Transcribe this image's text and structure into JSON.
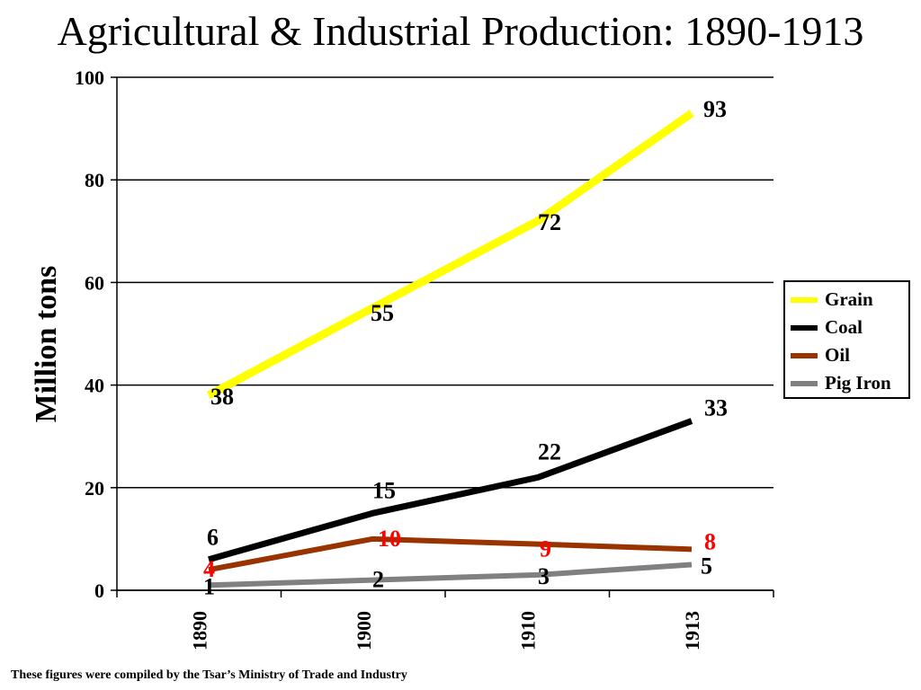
{
  "page": {
    "title": "Agricultural & Industrial Production: 1890-1913",
    "footnote": "These figures were compiled by the Tsar’s Ministry of Trade and Industry"
  },
  "chart_data": {
    "type": "line",
    "title": "Agricultural & Industrial Production: 1890-1913",
    "xlabel": "",
    "ylabel": "Million tons",
    "categories": [
      "1890",
      "1900",
      "1910",
      "1913"
    ],
    "ylim": [
      0,
      100
    ],
    "yticks": [
      0,
      20,
      40,
      60,
      80,
      100
    ],
    "grid": true,
    "legend_position": "right",
    "series": [
      {
        "name": "Grain",
        "values": [
          38,
          55,
          72,
          93
        ],
        "color": "#ffff00",
        "label_color": "#000000"
      },
      {
        "name": "Coal",
        "values": [
          6,
          15,
          22,
          33
        ],
        "color": "#000000",
        "label_color": "#000000"
      },
      {
        "name": "Oil",
        "values": [
          4,
          10,
          9,
          8
        ],
        "color": "#993300",
        "label_color": "#ff0000"
      },
      {
        "name": "Pig Iron",
        "values": [
          1,
          2,
          3,
          5
        ],
        "color": "#808080",
        "label_color": "#000000"
      }
    ]
  }
}
